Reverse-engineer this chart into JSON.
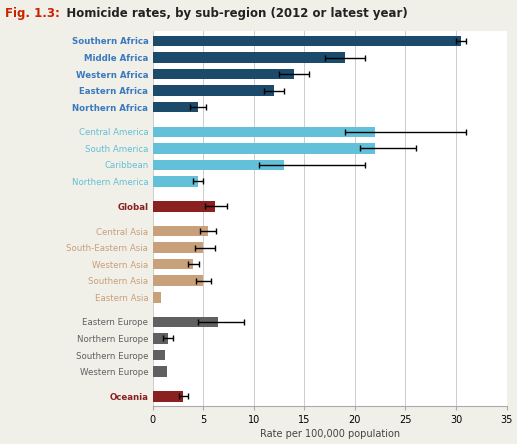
{
  "title_red": "Fig. 1.3:",
  "title_black": "   Homicide rates, by sub-region (2012 or latest year)",
  "xlabel": "Rate per 100,000 population",
  "xlim": [
    0,
    35
  ],
  "xticks": [
    0,
    5,
    10,
    15,
    20,
    25,
    30,
    35
  ],
  "categories": [
    "Southern Africa",
    "Middle Africa",
    "Western Africa",
    "Eastern Africa",
    "Northern Africa",
    "",
    "Central America",
    "South America",
    "Caribbean",
    "Northern America",
    "",
    "Global",
    "",
    "Central Asia",
    "South-Eastern Asia",
    "Western Asia",
    "Southern Asia",
    "Eastern Asia",
    "",
    "Eastern Europe",
    "Northern Europe",
    "Southern Europe",
    "Western Europe",
    "",
    "Oceania"
  ],
  "values": [
    30.5,
    19.0,
    14.0,
    12.0,
    4.5,
    0,
    22.0,
    22.0,
    13.0,
    4.5,
    0,
    6.2,
    0,
    5.5,
    5.0,
    4.0,
    5.0,
    0.8,
    0,
    6.5,
    1.5,
    1.2,
    1.4,
    0,
    3.0
  ],
  "errors_lo": [
    0.5,
    2.0,
    1.5,
    1.0,
    0.8,
    0,
    3.0,
    1.5,
    2.5,
    0.5,
    0,
    1.0,
    0,
    0.8,
    0.8,
    0.5,
    0.7,
    0.0,
    0,
    2.0,
    0.5,
    0.0,
    0.0,
    0,
    0.4
  ],
  "errors_hi": [
    0.5,
    2.0,
    1.5,
    1.0,
    0.8,
    0,
    9.0,
    4.0,
    8.0,
    0.5,
    0,
    1.2,
    0,
    0.8,
    1.2,
    0.6,
    0.8,
    0.0,
    0,
    2.5,
    0.5,
    0.0,
    0.0,
    0,
    0.5
  ],
  "bar_colors": [
    "#1b4a6b",
    "#1b4a6b",
    "#1b4a6b",
    "#1b4a6b",
    "#1b4a6b",
    "none",
    "#62c0d8",
    "#62c0d8",
    "#62c0d8",
    "#62c0d8",
    "none",
    "#8b2020",
    "none",
    "#c8a07a",
    "#c8a07a",
    "#c8a07a",
    "#c8a07a",
    "#c8a07a",
    "none",
    "#606060",
    "#606060",
    "#606060",
    "#606060",
    "none",
    "#8b2020"
  ],
  "label_colors": [
    "#3a7abf",
    "#3a7abf",
    "#3a7abf",
    "#3a7abf",
    "#3a7abf",
    "none",
    "#62c0d8",
    "#62c0d8",
    "#62c0d8",
    "#62c0d8",
    "none",
    "#8b2020",
    "none",
    "#c8a07a",
    "#c8a07a",
    "#c8a07a",
    "#c8a07a",
    "#c8a07a",
    "none",
    "#606060",
    "#606060",
    "#606060",
    "#606060",
    "none",
    "#8b2020"
  ],
  "label_bold": [
    true,
    true,
    true,
    true,
    true,
    false,
    false,
    false,
    false,
    false,
    false,
    true,
    false,
    false,
    false,
    false,
    false,
    false,
    false,
    false,
    false,
    false,
    false,
    false,
    true
  ],
  "is_spacer": [
    false,
    false,
    false,
    false,
    false,
    true,
    false,
    false,
    false,
    false,
    true,
    false,
    true,
    false,
    false,
    false,
    false,
    false,
    true,
    false,
    false,
    false,
    false,
    true,
    false
  ],
  "background_color": "#f0efe8",
  "plot_area_color": "#ffffff"
}
